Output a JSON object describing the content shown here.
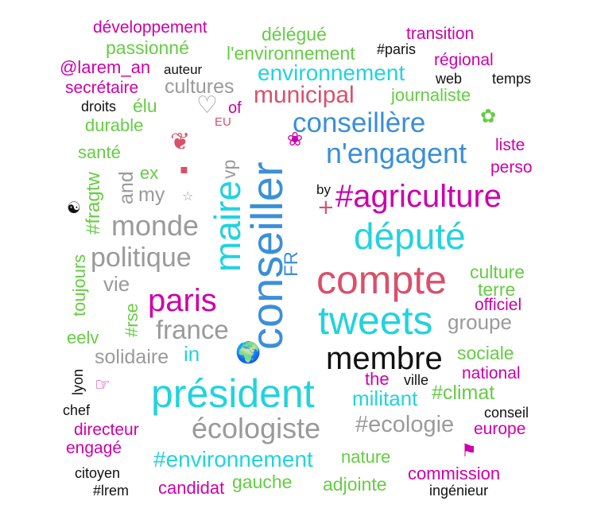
{
  "colors": {
    "cyan": "#22d3dd",
    "magenta": "#cc00aa",
    "gray": "#9a9a9a",
    "green": "#66cc44",
    "blue": "#3b8fd8",
    "red": "#d9506a",
    "black": "#111111"
  },
  "words": [
    {
      "id": "w01",
      "text": "développement",
      "color": "#cc00aa"
    },
    {
      "id": "w02",
      "text": "délégué",
      "color": "#66cc44"
    },
    {
      "id": "w03",
      "text": "transition",
      "color": "#cc00aa"
    },
    {
      "id": "w04",
      "text": "passionné",
      "color": "#66cc44"
    },
    {
      "id": "w05",
      "text": "l'environnement",
      "color": "#66cc44"
    },
    {
      "id": "w06",
      "text": "#paris",
      "color": "#111111"
    },
    {
      "id": "w07",
      "text": "régional",
      "color": "#cc00aa"
    },
    {
      "id": "w08",
      "text": "@larem_an",
      "color": "#cc00aa"
    },
    {
      "id": "w09",
      "text": "auteur",
      "color": "#111111"
    },
    {
      "id": "w10",
      "text": "environnement",
      "color": "#22d3dd"
    },
    {
      "id": "w11",
      "text": "web",
      "color": "#111111"
    },
    {
      "id": "w12",
      "text": "temps",
      "color": "#111111"
    },
    {
      "id": "w13",
      "text": "secrétaire",
      "color": "#cc00aa"
    },
    {
      "id": "w14",
      "text": "cultures",
      "color": "#9a9a9a"
    },
    {
      "id": "w15",
      "text": "municipal",
      "color": "#d9506a"
    },
    {
      "id": "w16",
      "text": "journaliste",
      "color": "#66cc44"
    },
    {
      "id": "w17",
      "text": "droits",
      "color": "#111111"
    },
    {
      "id": "w18",
      "text": "élu",
      "color": "#66cc44"
    },
    {
      "id": "w19",
      "text": "of",
      "color": "#cc00aa"
    },
    {
      "id": "w20",
      "text": "EU",
      "color": "#d9506a"
    },
    {
      "id": "w21",
      "text": "durable",
      "color": "#66cc44"
    },
    {
      "id": "w22",
      "text": "conseillère",
      "color": "#3b8fd8"
    },
    {
      "id": "w23",
      "text": "santé",
      "color": "#66cc44"
    },
    {
      "id": "w24",
      "text": "n'engagent",
      "color": "#3b8fd8"
    },
    {
      "id": "w25",
      "text": "liste",
      "color": "#cc00aa"
    },
    {
      "id": "w26",
      "text": "perso",
      "color": "#cc00aa"
    },
    {
      "id": "w27",
      "text": "ex",
      "color": "#66cc44"
    },
    {
      "id": "w28",
      "text": "by",
      "color": "#111111"
    },
    {
      "id": "w29",
      "text": "#agriculture",
      "color": "#cc00aa"
    },
    {
      "id": "w30",
      "text": "my",
      "color": "#9a9a9a"
    },
    {
      "id": "w31",
      "text": "monde",
      "color": "#9a9a9a"
    },
    {
      "id": "w32",
      "text": "député",
      "color": "#22d3dd"
    },
    {
      "id": "w33",
      "text": "politique",
      "color": "#9a9a9a"
    },
    {
      "id": "w34",
      "text": "compte",
      "color": "#d9506a"
    },
    {
      "id": "w35",
      "text": "culture",
      "color": "#66cc44"
    },
    {
      "id": "w36",
      "text": "vie",
      "color": "#9a9a9a"
    },
    {
      "id": "w37",
      "text": "terre",
      "color": "#66cc44"
    },
    {
      "id": "w38",
      "text": "paris",
      "color": "#cc00aa"
    },
    {
      "id": "w39",
      "text": "officiel",
      "color": "#cc00aa"
    },
    {
      "id": "w40",
      "text": "tweets",
      "color": "#22d3dd"
    },
    {
      "id": "w41",
      "text": "groupe",
      "color": "#9a9a9a"
    },
    {
      "id": "w42",
      "text": "france",
      "color": "#9a9a9a"
    },
    {
      "id": "w43",
      "text": "eelv",
      "color": "#66cc44"
    },
    {
      "id": "w44",
      "text": "in",
      "color": "#22d3dd"
    },
    {
      "id": "w45",
      "text": "solidaire",
      "color": "#9a9a9a"
    },
    {
      "id": "w46",
      "text": "membre",
      "color": "#111111"
    },
    {
      "id": "w47",
      "text": "sociale",
      "color": "#66cc44"
    },
    {
      "id": "w48",
      "text": "the",
      "color": "#cc00aa"
    },
    {
      "id": "w49",
      "text": "ville",
      "color": "#111111"
    },
    {
      "id": "w50",
      "text": "national",
      "color": "#cc00aa"
    },
    {
      "id": "w51",
      "text": "président",
      "color": "#22d3dd"
    },
    {
      "id": "w52",
      "text": "militant",
      "color": "#22d3dd"
    },
    {
      "id": "w53",
      "text": "#climat",
      "color": "#66cc44"
    },
    {
      "id": "w54",
      "text": "chef",
      "color": "#111111"
    },
    {
      "id": "w55",
      "text": "conseil",
      "color": "#111111"
    },
    {
      "id": "w56",
      "text": "écologiste",
      "color": "#9a9a9a"
    },
    {
      "id": "w57",
      "text": "#ecologie",
      "color": "#9a9a9a"
    },
    {
      "id": "w58",
      "text": "directeur",
      "color": "#cc00aa"
    },
    {
      "id": "w59",
      "text": "europe",
      "color": "#cc00aa"
    },
    {
      "id": "w60",
      "text": "engagé",
      "color": "#cc00aa"
    },
    {
      "id": "w61",
      "text": "#environnement",
      "color": "#22d3dd"
    },
    {
      "id": "w62",
      "text": "nature",
      "color": "#66cc44"
    },
    {
      "id": "w63",
      "text": "citoyen",
      "color": "#111111"
    },
    {
      "id": "w64",
      "text": "commission",
      "color": "#cc00aa"
    },
    {
      "id": "w65",
      "text": "gauche",
      "color": "#66cc44"
    },
    {
      "id": "w66",
      "text": "#lrem",
      "color": "#111111"
    },
    {
      "id": "w67",
      "text": "candidat",
      "color": "#cc00aa"
    },
    {
      "id": "w68",
      "text": "adjointe",
      "color": "#66cc44"
    },
    {
      "id": "w69",
      "text": "ingénieur",
      "color": "#111111"
    }
  ],
  "vertical_words": [
    {
      "id": "v01",
      "text": "vp",
      "color": "#9a9a9a"
    },
    {
      "id": "v02",
      "text": "and",
      "color": "#9a9a9a"
    },
    {
      "id": "v03",
      "text": "maire",
      "color": "#22d3dd"
    },
    {
      "id": "v04",
      "text": "conseiller",
      "color": "#3b8fd8"
    },
    {
      "id": "v05",
      "text": "#fragtw",
      "color": "#66cc44"
    },
    {
      "id": "v06",
      "text": "FR",
      "color": "#3b8fd8"
    },
    {
      "id": "v07",
      "text": "toujours",
      "color": "#66cc44"
    },
    {
      "id": "v08",
      "text": "#rse",
      "color": "#66cc44"
    },
    {
      "id": "v09",
      "text": "lyon",
      "color": "#111111"
    }
  ],
  "icons": [
    {
      "id": "i01",
      "name": "heart-icon",
      "glyph": "♡",
      "color": "#9a9a9a"
    },
    {
      "id": "i02",
      "name": "flower-icon",
      "glyph": "✿",
      "color": "#66cc44"
    },
    {
      "id": "i03",
      "name": "seedling-icon",
      "glyph": "❦",
      "color": "#d9506a"
    },
    {
      "id": "i04",
      "name": "bee-icon",
      "glyph": "❀",
      "color": "#cc00aa"
    },
    {
      "id": "i05",
      "name": "small-square-icon",
      "glyph": "▪",
      "color": "#d9506a"
    },
    {
      "id": "i06",
      "name": "star-icon",
      "glyph": "☆",
      "color": "#9a9a9a"
    },
    {
      "id": "i07",
      "name": "yin-yang-icon",
      "glyph": "☯",
      "color": "#111111"
    },
    {
      "id": "i08",
      "name": "plus-icon",
      "glyph": "+",
      "color": "#d9506a"
    },
    {
      "id": "i09",
      "name": "globe-icon",
      "glyph": "🌍",
      "color": "#9a9a9a"
    },
    {
      "id": "i10",
      "name": "pointing-hand-icon",
      "glyph": "☞",
      "color": "#cc00aa"
    },
    {
      "id": "i11",
      "name": "flag-icon",
      "glyph": "⚑",
      "color": "#cc00aa"
    }
  ]
}
